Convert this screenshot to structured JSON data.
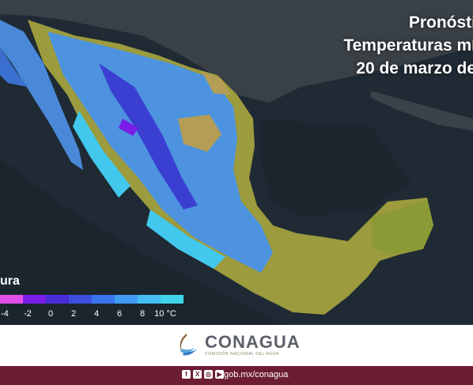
{
  "title": {
    "line1": "Pronósti",
    "line2": "Temperaturas mí",
    "line3": "20 de marzo de"
  },
  "legend": {
    "title": "ura",
    "colors": [
      "#e14fe8",
      "#7a1de8",
      "#4a2bd8",
      "#3b4ee0",
      "#3a74ef",
      "#3f9cf2",
      "#42bff0",
      "#40d4e9"
    ],
    "ticks": [
      "-4",
      "-2",
      "0",
      "2",
      "4",
      "6",
      "8",
      "10 °C"
    ]
  },
  "land_colors": {
    "ocean": "#1f2a34",
    "usa": "#3a3f42",
    "warm": "#9c9b3e",
    "cool": "#4e93e0",
    "cold": "#3a3fd2"
  },
  "logo": {
    "name": "CONAGUA",
    "subtitle": "COMISIÓN NACIONAL DEL AGUA"
  },
  "footer": {
    "social_icons": [
      "facebook-icon",
      "x-icon",
      "instagram-icon",
      "youtube-icon"
    ],
    "url": "gob.mx/conagua"
  }
}
